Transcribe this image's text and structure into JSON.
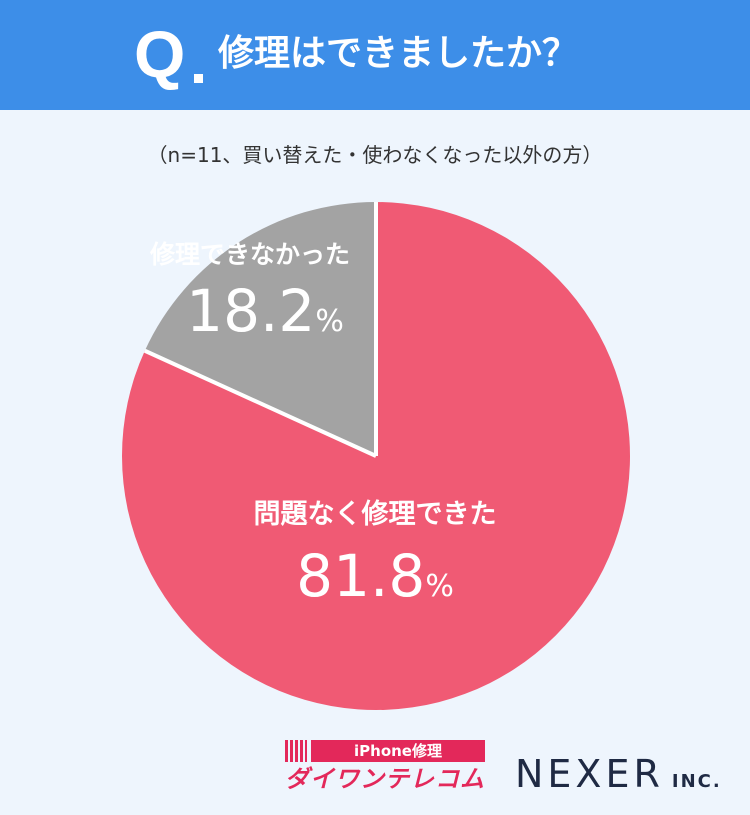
{
  "header": {
    "q_mark": "Q",
    "question": "修理はできましたか？"
  },
  "note": "（n=11、買い替えた・使わなくなった以外の方）",
  "chart_data": {
    "type": "pie",
    "title": "修理はできましたか？",
    "subtitle": "（n=11、買い替えた・使わなくなった以外の方）",
    "slices": [
      {
        "label": "問題なく修理できた",
        "value": 81.8,
        "display": "81.8",
        "unit": "%",
        "color": "#f05a74"
      },
      {
        "label": "修理できなかった",
        "value": 18.2,
        "display": "18.2",
        "unit": "%",
        "color": "#a3a3a3"
      }
    ],
    "start_angle_deg": 0,
    "direction": "clockwise",
    "separator_color": "#ffffff"
  },
  "logos": {
    "daiwan_top": "iPhone修理",
    "daiwan_bottom": "ダイワンテレコム",
    "nexer_main": "NEXER",
    "nexer_sub": "INC."
  },
  "colors": {
    "header_bg": "#3d8ee8",
    "page_bg": "#eef5fd"
  }
}
